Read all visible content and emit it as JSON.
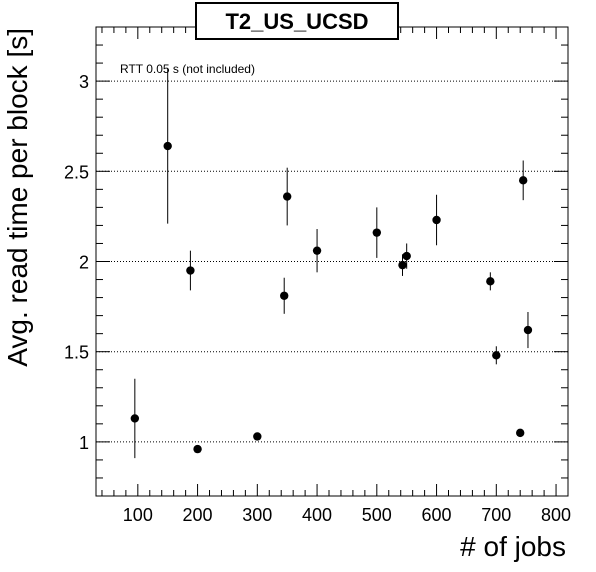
{
  "chart_data": {
    "type": "scatter",
    "title": "T2_US_UCSD",
    "annotation": "RTT 0.05 s (not included)",
    "xlabel": "# of jobs",
    "ylabel": "Avg. read time per block [s]",
    "xlim": [
      30,
      820
    ],
    "ylim": [
      0.7,
      3.3
    ],
    "xticks": [
      100,
      200,
      300,
      400,
      500,
      600,
      700,
      800
    ],
    "xtick_labels": [
      "100",
      "200",
      "300",
      "400",
      "500",
      "600",
      "700",
      "800"
    ],
    "yticks": [
      1,
      1.5,
      2,
      2.5,
      3
    ],
    "ytick_labels": [
      "1",
      "1.5",
      "2",
      "2.5",
      "3"
    ],
    "grid": "horizontal dotted at major y ticks",
    "series": [
      {
        "points": [
          {
            "x": 95,
            "y": 1.13,
            "err": 0.22
          },
          {
            "x": 150,
            "y": 2.64,
            "err": 0.43
          },
          {
            "x": 188,
            "y": 1.95,
            "err": 0.11
          },
          {
            "x": 200,
            "y": 0.96,
            "err": 0.02
          },
          {
            "x": 300,
            "y": 1.03,
            "err": 0.02
          },
          {
            "x": 345,
            "y": 1.81,
            "err": 0.1
          },
          {
            "x": 350,
            "y": 2.36,
            "err": 0.16
          },
          {
            "x": 400,
            "y": 2.06,
            "err": 0.12
          },
          {
            "x": 500,
            "y": 2.16,
            "err": 0.14
          },
          {
            "x": 543,
            "y": 1.98,
            "err": 0.06
          },
          {
            "x": 550,
            "y": 2.03,
            "err": 0.07
          },
          {
            "x": 600,
            "y": 2.23,
            "err": 0.14
          },
          {
            "x": 690,
            "y": 1.89,
            "err": 0.05
          },
          {
            "x": 700,
            "y": 1.48,
            "err": 0.05
          },
          {
            "x": 740,
            "y": 1.05,
            "err": 0.02
          },
          {
            "x": 745,
            "y": 2.45,
            "err": 0.11
          },
          {
            "x": 753,
            "y": 1.62,
            "err": 0.1
          }
        ]
      }
    ]
  }
}
